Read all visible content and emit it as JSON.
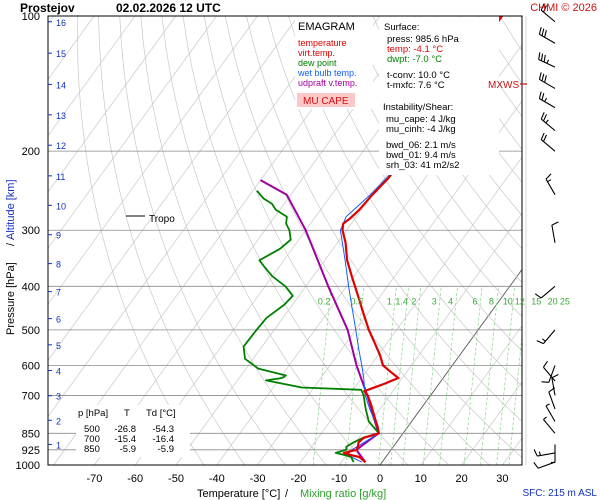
{
  "header": {
    "station": "Prostejov",
    "datetime": "02.02.2026 12 UTC",
    "credit": "CHMI © 2026"
  },
  "legend": {
    "title": "EMAGRAM",
    "items": [
      {
        "label": "temperature",
        "color": "#e00000"
      },
      {
        "label": "virt.temp.",
        "color": "#e00000"
      },
      {
        "label": "dew point",
        "color": "#008000"
      },
      {
        "label": "wet bulb temp.",
        "color": "#1060ff"
      },
      {
        "label": "udpraft v.temp.",
        "color": "#a000a0"
      }
    ],
    "mu_cape_label": "MU CAPE"
  },
  "surface_box": {
    "title": "Surface:",
    "lines": [
      "press: 985.6 hPa",
      "temp: -4.1 °C",
      "dwpt: -7.0 °C",
      "t-conv: 10.0 °C",
      "t-mxfc: 7.6 °C"
    ],
    "line_colors": [
      "#000000",
      "#e00000",
      "#008000",
      "#000000",
      "#000000"
    ],
    "instability_title": "Instability/Shear:",
    "instability_lines": [
      "mu_cape: 4 J/kg",
      "mu_cinh: -4 J/kg",
      "bwd_06: 2.1 m/s",
      "bwd_01: 9.4 m/s",
      "srh_03: 41 m2/s2"
    ]
  },
  "table": {
    "headers": [
      "p [hPa]",
      "T",
      "Td [°C]"
    ],
    "rows": [
      [
        "500",
        "-26.8",
        "-54.3"
      ],
      [
        "700",
        "-15.4",
        "-16.4"
      ],
      [
        "850",
        "-5.9",
        "-5.9"
      ]
    ]
  },
  "annotations": {
    "tropo": "Tropo",
    "mxws": "MXWS",
    "sfc": "SFC: 215 m ASL"
  },
  "chart_data": {
    "type": "line",
    "title": "Prostejov 02.02.2026 12 UTC",
    "xlabel": "Temperature [°C]",
    "xlabel_sep": "/",
    "xlabel2": "Mixing ratio [g/kg]",
    "ylabel": "Pressure [hPa]",
    "ylabel_sep": "/",
    "ylabel2": "Altitude [km]",
    "x_ticks": [
      -70,
      -60,
      -50,
      -40,
      -30,
      -20,
      -10,
      0,
      10,
      20,
      30
    ],
    "xlim": [
      -80,
      35
    ],
    "ylim": [
      1000,
      100
    ],
    "y_scale": "log",
    "y_ticks": [
      100,
      200,
      300,
      400,
      500,
      600,
      700,
      850,
      925,
      1000
    ],
    "altitude_ticks_km": [
      1,
      2,
      3,
      4,
      5,
      6,
      7,
      8,
      9,
      10,
      11,
      12,
      13,
      14,
      15,
      16
    ],
    "altitude_pressures_hpa": [
      900,
      795,
      701,
      616,
      540,
      472,
      411,
      356,
      307,
      264,
      227,
      194,
      166,
      142,
      121,
      103
    ],
    "mixing_ratio_labels": [
      "0.2",
      "0.5",
      "1",
      "1.4",
      "2",
      "3",
      "4",
      "6",
      "8",
      "10",
      "12",
      "15",
      "20",
      "25"
    ],
    "mixing_ratio_label_temps": [
      -43,
      -35,
      -27,
      -24,
      -21,
      -16,
      -12,
      -6,
      -2,
      2,
      5,
      9,
      13,
      16
    ],
    "mixing_ratio_label_pressure": 430,
    "grid": true,
    "series": [
      {
        "name": "temperature",
        "color": "#e00000",
        "points": [
          [
            985,
            -4.1
          ],
          [
            960,
            -6.5
          ],
          [
            950,
            -9
          ],
          [
            940,
            -11
          ],
          [
            925,
            -8.5
          ],
          [
            910,
            -8.7
          ],
          [
            890,
            -9.3
          ],
          [
            870,
            -8.8
          ],
          [
            850,
            -5.9
          ],
          [
            820,
            -7.5
          ],
          [
            780,
            -10
          ],
          [
            740,
            -12.5
          ],
          [
            700,
            -15.4
          ],
          [
            685,
            -17
          ],
          [
            660,
            -13.5
          ],
          [
            640,
            -11
          ],
          [
            620,
            -14
          ],
          [
            600,
            -17
          ],
          [
            570,
            -19.5
          ],
          [
            540,
            -22.5
          ],
          [
            500,
            -26.8
          ],
          [
            460,
            -31
          ],
          [
            420,
            -35.5
          ],
          [
            380,
            -40.5
          ],
          [
            350,
            -44.5
          ],
          [
            320,
            -48
          ],
          [
            300,
            -51
          ],
          [
            290,
            -52
          ],
          [
            283,
            -51.3
          ],
          [
            270,
            -50.5
          ],
          [
            250,
            -50
          ],
          [
            230,
            -49
          ],
          [
            215,
            -49
          ],
          [
            205,
            -47.5
          ],
          [
            190,
            -47.5
          ],
          [
            180,
            -48
          ],
          [
            160,
            -47
          ],
          [
            140,
            -48
          ],
          [
            125,
            -48.5
          ],
          [
            110,
            -50
          ],
          [
            100,
            -50
          ]
        ]
      },
      {
        "name": "dew point",
        "color": "#008000",
        "points": [
          [
            985,
            -7
          ],
          [
            960,
            -8.5
          ],
          [
            950,
            -10.5
          ],
          [
            940,
            -13
          ],
          [
            925,
            -11
          ],
          [
            910,
            -11.5
          ],
          [
            890,
            -10.5
          ],
          [
            870,
            -9
          ],
          [
            850,
            -5.9
          ],
          [
            800,
            -10.5
          ],
          [
            750,
            -13.5
          ],
          [
            700,
            -16.4
          ],
          [
            680,
            -18
          ],
          [
            672,
            -33
          ],
          [
            655,
            -40
          ],
          [
            648,
            -43
          ],
          [
            640,
            -39.5
          ],
          [
            632,
            -39
          ],
          [
            610,
            -47
          ],
          [
            580,
            -52
          ],
          [
            545,
            -54.5
          ],
          [
            500,
            -54.3
          ],
          [
            470,
            -54
          ],
          [
            440,
            -52
          ],
          [
            420,
            -51.5
          ],
          [
            400,
            -55
          ],
          [
            380,
            -60
          ],
          [
            360,
            -64
          ],
          [
            350,
            -66
          ],
          [
            330,
            -63
          ],
          [
            315,
            -62
          ],
          [
            300,
            -64
          ],
          [
            290,
            -66
          ],
          [
            280,
            -67
          ],
          [
            270,
            -71
          ],
          [
            262,
            -73
          ],
          [
            255,
            -76
          ],
          [
            245,
            -79
          ]
        ]
      },
      {
        "name": "wet bulb temp.",
        "color": "#1060ff",
        "points": [
          [
            985,
            -5
          ],
          [
            950,
            -9.8
          ],
          [
            925,
            -9.6
          ],
          [
            850,
            -5.9
          ],
          [
            800,
            -9
          ],
          [
            750,
            -12.5
          ],
          [
            700,
            -16
          ],
          [
            640,
            -19.5
          ],
          [
            600,
            -22.2
          ],
          [
            550,
            -26
          ],
          [
            500,
            -30
          ],
          [
            450,
            -34.5
          ],
          [
            400,
            -39.5
          ],
          [
            350,
            -45
          ],
          [
            300,
            -51.5
          ],
          [
            280,
            -52.5
          ],
          [
            250,
            -50.5
          ],
          [
            230,
            -49.5
          ],
          [
            200,
            -48.5
          ],
          [
            190,
            -48.5
          ],
          [
            160,
            -47.5
          ],
          [
            140,
            -48.8
          ],
          [
            120,
            -49.5
          ],
          [
            110,
            -50.5
          ],
          [
            100,
            -50.5
          ]
        ]
      },
      {
        "name": "udpraft v.temp.",
        "color": "#a000a0",
        "points": [
          [
            985,
            -4.1
          ],
          [
            925,
            -8.5
          ],
          [
            850,
            -6
          ],
          [
            760,
            -11.5
          ],
          [
            700,
            -15.5
          ],
          [
            600,
            -23.5
          ],
          [
            500,
            -32
          ],
          [
            400,
            -44.5
          ],
          [
            300,
            -60
          ],
          [
            250,
            -71
          ],
          [
            232,
            -80
          ]
        ]
      }
    ],
    "wind_barbs": [
      {
        "p": 985,
        "dir": 250,
        "speed_kt": 10
      },
      {
        "p": 940,
        "dir": 260,
        "speed_kt": 15
      },
      {
        "p": 900,
        "dir": 180,
        "speed_kt": 5
      },
      {
        "p": 850,
        "dir": 320,
        "speed_kt": 5
      },
      {
        "p": 800,
        "dir": 330,
        "speed_kt": 5
      },
      {
        "p": 750,
        "dir": 340,
        "speed_kt": 10
      },
      {
        "p": 700,
        "dir": 350,
        "speed_kt": 10
      },
      {
        "p": 650,
        "dir": 320,
        "speed_kt": 10
      },
      {
        "p": 600,
        "dir": 200,
        "speed_kt": 10
      },
      {
        "p": 500,
        "dir": 220,
        "speed_kt": 15
      },
      {
        "p": 400,
        "dir": 230,
        "speed_kt": 10
      },
      {
        "p": 320,
        "dir": 350,
        "speed_kt": 10
      },
      {
        "p": 250,
        "dir": 330,
        "speed_kt": 15
      },
      {
        "p": 200,
        "dir": 310,
        "speed_kt": 20
      },
      {
        "p": 180,
        "dir": 310,
        "speed_kt": 25
      },
      {
        "p": 160,
        "dir": 300,
        "speed_kt": 25
      },
      {
        "p": 145,
        "dir": 300,
        "speed_kt": 30
      },
      {
        "p": 130,
        "dir": 295,
        "speed_kt": 35
      },
      {
        "p": 115,
        "dir": 300,
        "speed_kt": 30
      },
      {
        "p": 103,
        "dir": 310,
        "speed_kt": 20
      }
    ]
  }
}
